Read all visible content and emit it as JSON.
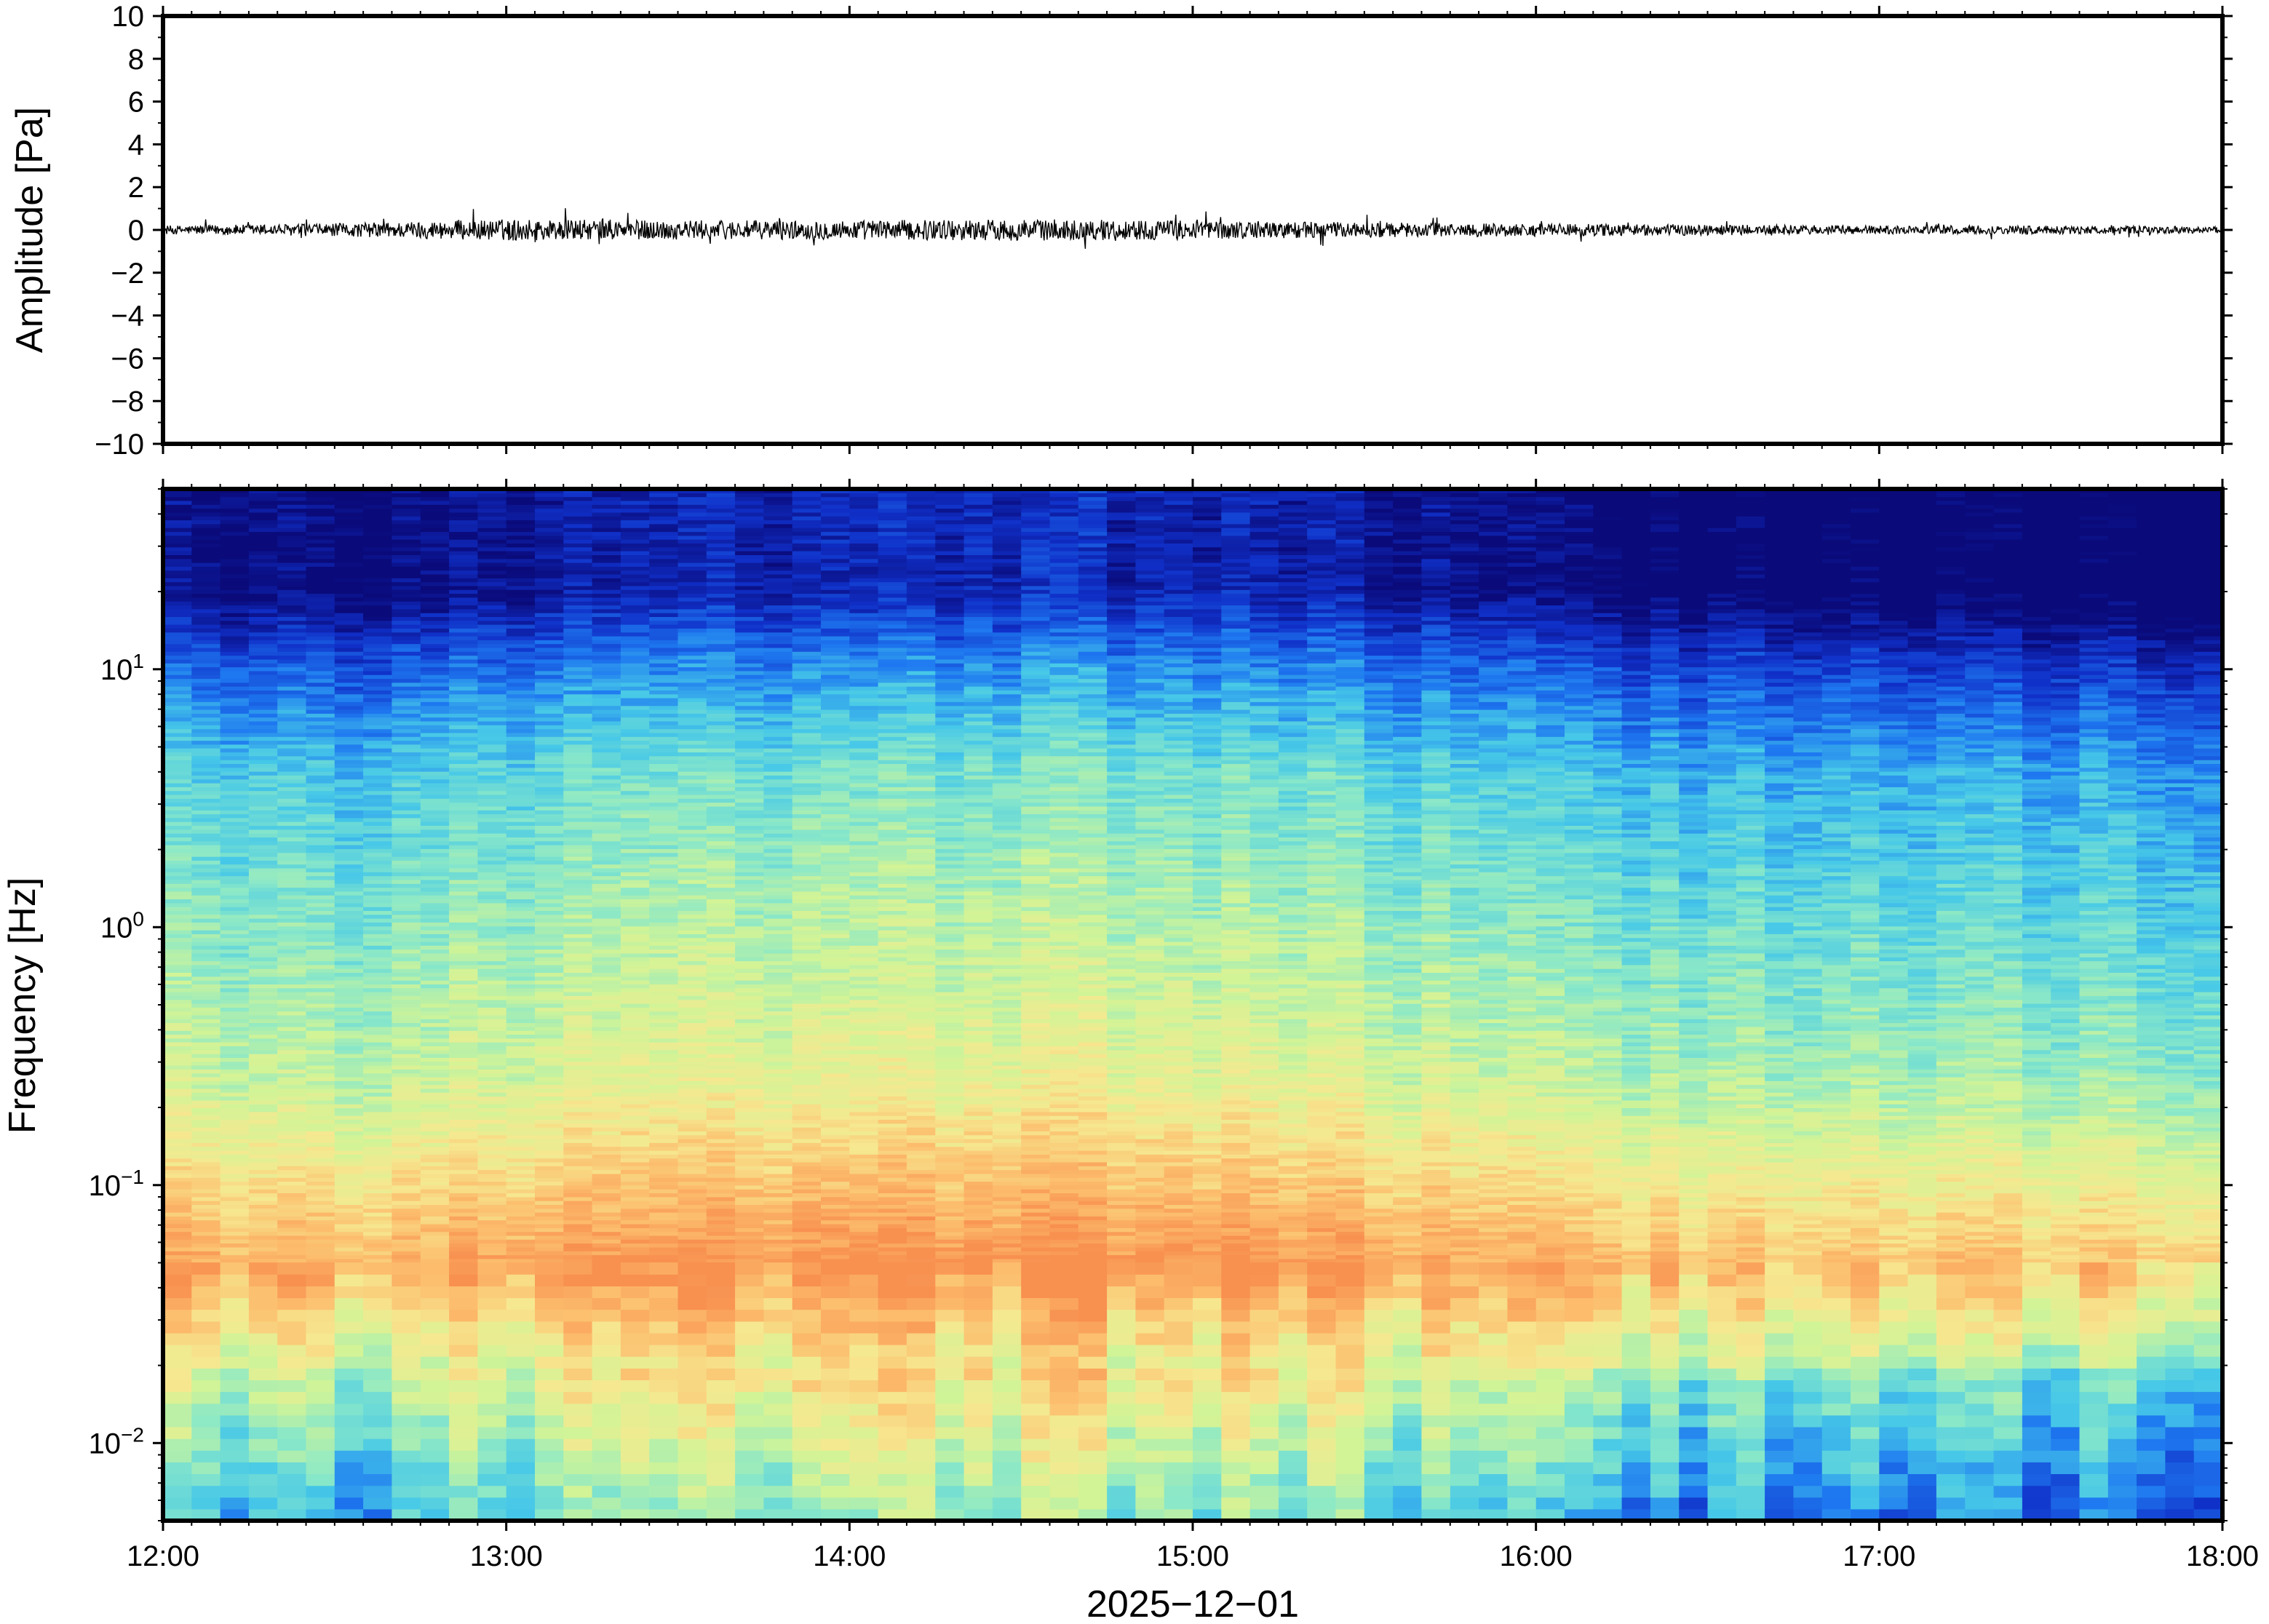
{
  "chart_data": [
    {
      "type": "line",
      "panel": "waveform",
      "title": "",
      "xlabel": "",
      "ylabel": "Amplitude [Pa]",
      "ylim": [
        -10,
        10
      ],
      "xlim": [
        "12:00",
        "18:00"
      ],
      "yticks": [
        10,
        8,
        6,
        4,
        2,
        0,
        -2,
        -4,
        -6,
        -8,
        -10
      ],
      "ytick_labels": [
        "10",
        "8",
        "6",
        "4",
        "2",
        "0",
        "−2",
        "−4",
        "−6",
        "−8",
        "−10"
      ],
      "series": [
        {
          "x": [
            "12:00",
            "12:30",
            "13:00",
            "13:30",
            "14:00",
            "14:30",
            "15:00",
            "15:30",
            "16:00",
            "16:30",
            "17:00",
            "17:30",
            "18:00"
          ],
          "envelope": [
            0.2,
            0.3,
            0.5,
            0.45,
            0.45,
            0.5,
            0.45,
            0.35,
            0.3,
            0.25,
            0.2,
            0.2,
            0.15
          ],
          "color": "#000000"
        }
      ]
    },
    {
      "type": "heatmap",
      "panel": "spectrogram",
      "title": "",
      "xlabel": "2025−12−01",
      "ylabel": "Frequency [Hz]",
      "yscale": "log",
      "ylim": [
        0.005,
        50
      ],
      "xlim": [
        "12:00",
        "18:00"
      ],
      "xticks": [
        "12:00",
        "13:00",
        "14:00",
        "15:00",
        "16:00",
        "17:00",
        "18:00"
      ],
      "yticks": [
        10,
        1,
        0.1,
        0.01
      ],
      "ytick_labels": [
        {
          "base": "10",
          "exp": "1"
        },
        {
          "base": "10",
          "exp": "0"
        },
        {
          "base": "10",
          "exp": "−1"
        },
        {
          "base": "10",
          "exp": "−2"
        }
      ],
      "colormap": [
        "#0a0a7a",
        "#1030c8",
        "#1e78f0",
        "#46c8e8",
        "#8ae8c8",
        "#d2f496",
        "#f6e890",
        "#fcbc6c",
        "#f89050"
      ],
      "time_profile": [
        0.0,
        -0.05,
        0.05,
        0.1,
        0.1,
        0.15,
        0.12,
        0.05,
        -0.05,
        -0.1,
        -0.1,
        -0.12,
        -0.15
      ],
      "peak_band_hz": [
        0.03,
        0.08
      ]
    }
  ]
}
